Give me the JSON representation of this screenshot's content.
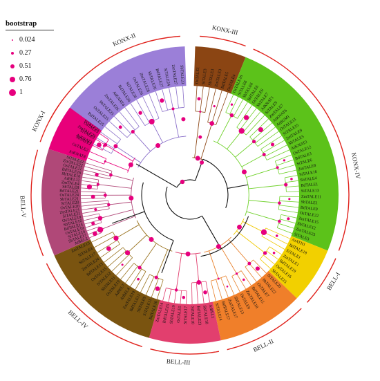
{
  "legend": {
    "title": "bootstrap",
    "items": [
      {
        "label": "0.024",
        "value": 0.024
      },
      {
        "label": "0.27",
        "value": 0.27
      },
      {
        "label": "0.51",
        "value": 0.51
      },
      {
        "label": "0.76",
        "value": 0.76
      },
      {
        "label": "1",
        "value": 1
      }
    ],
    "dot_color": "#e6007e"
  },
  "clades": [
    {
      "name": "KONX-II",
      "color": "#9b7fd8",
      "branch": "#8a6fc9"
    },
    {
      "name": "KONX-III",
      "color": "#8b4513",
      "branch": "#8b4513"
    },
    {
      "name": "KONX-IV",
      "color": "#5cc21a",
      "branch": "#6fd12a"
    },
    {
      "name": "BELL-I",
      "color": "#f2d000",
      "branch": "#f0c800"
    },
    {
      "name": "BELL-II",
      "color": "#f07f2a",
      "branch": "#e8802a"
    },
    {
      "name": "BELL-III",
      "color": "#e23f6e",
      "branch": "#e03a6a"
    },
    {
      "name": "BELL-IV",
      "color": "#7a5410",
      "branch": "#9a7420"
    },
    {
      "name": "BELL-V",
      "color": "#b04878",
      "branch": "#b04878"
    },
    {
      "name": "KONX-I",
      "color": "#e8007a",
      "branch": "#e8007a"
    }
  ],
  "leaves": {
    "KONX-II": [
      "AtKNAT3",
      "ZmTALE25",
      "SiTALE25",
      "BdTALE25",
      "OsTALE25",
      "SbTALE25",
      "ZmTALE26",
      "AtKNAT4",
      "BdTALE26",
      "SiTALE26",
      "OsTALE26",
      "ZmTALE28",
      "SbTALE26",
      "BdTALE27",
      "SiTALE24",
      "ZmTALE27",
      "SbTALE23"
    ],
    "KONX-III": [
      "OsTALE1",
      "SiTALE3",
      "SbTALE3",
      "ZmTALE3",
      "BdTALE5",
      "OsTALE4"
    ],
    "KONX-IV": [
      "OsTALE16",
      "SiTALE8",
      "SbTALE6",
      "BdTALE6",
      "OsTALE6",
      "SbTALE7",
      "AtKNAT1",
      "SiTALE9",
      "ZmTALE7",
      "AtKNAT6",
      "AtBUM1",
      "OsTALE13",
      "SiTALE15",
      "ZmTALE9",
      "SbTALE5",
      "AtKNAT2",
      "OsTALE12",
      "BdTALE3",
      "SiTALE6",
      "ZmTALE8",
      "SiTALE16",
      "SbTALE4",
      "BdTALE1",
      "SiTALE13",
      "ZmTALE11",
      "SbTALE1",
      "BdTALE9",
      "OsTALE22",
      "ZmTALE15",
      "SbTALE12",
      "ZmTALE23",
      "SiTALE3"
    ],
    "BELL-I": [
      "AtATH1",
      "BdTALE18",
      "SiTALE1",
      "ZmTALE1",
      "BdTALE19",
      "OsTALE16",
      "SbTALE15"
    ],
    "BELL-II": [
      "SiTALE20",
      "SbTALE22",
      "OsTALE7",
      "BdTALE15",
      "ZmTALE18",
      "OsTALE9",
      "SbTALE13",
      "ZmTALE17",
      "BdTALE17",
      "SiTALE14"
    ],
    "BELL-III": [
      "AtBEL1",
      "SbTALE18",
      "BdTALE23",
      "SiTALE10",
      "SiTALE17",
      "OsTALE5",
      "SbTALE19",
      "BdTALE15",
      "ZmTALE14"
    ],
    "BELL-IV": [
      "BdTALE10",
      "SiTALE11",
      "SbTALE9",
      "BdTALE11",
      "ZmTALE10",
      "AtBEL4",
      "AtBEL7",
      "OsTALE19",
      "SbTALE11",
      "SiTALE12",
      "OsTALE15",
      "BdTALE13",
      "ZmTALE24",
      "SbTALE17",
      "SiTALE4",
      "ZmTALE13"
    ],
    "BELL-V": [
      "AtBEL2",
      "SbTALE17",
      "SiTALE14",
      "OsTALE19",
      "BdTALE14",
      "SbTALE16",
      "OsTALE18",
      "SiTALE21",
      "ZmTALE21",
      "OsTALE20",
      "SiTALE20",
      "SbTALE21",
      "OsTALE24",
      "BdTALE21",
      "SbTALE8",
      "ZmTALE4",
      "AtBEL11",
      "SbTALE10",
      "BdTALE16",
      "OsTALE21",
      "ZmTALE22",
      "SiTALE22"
    ],
    "KONX-I": [
      "AtKNAT8",
      "OsTALE2",
      "SbTALE2",
      "SiTALE2",
      "OsTALE3"
    ]
  }
}
